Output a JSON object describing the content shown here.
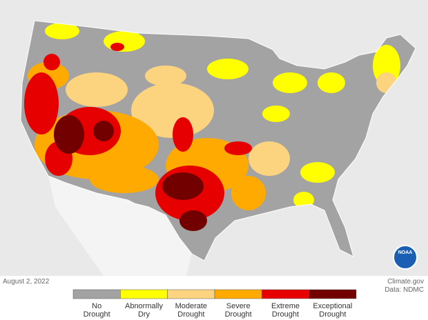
{
  "date": "August 2, 2022",
  "credit": [
    "Climate.gov",
    "Data: NDMC"
  ],
  "logo": "NOAA",
  "legend": [
    {
      "lines": [
        "No",
        "Drought"
      ],
      "color": "#a3a3a3"
    },
    {
      "lines": [
        "Abnormally",
        "Dry"
      ],
      "color": "#ffff00"
    },
    {
      "lines": [
        "Moderate",
        "Drought"
      ],
      "color": "#fcd37f"
    },
    {
      "lines": [
        "Severe",
        "Drought"
      ],
      "color": "#ffaa00"
    },
    {
      "lines": [
        "Extreme",
        "Drought"
      ],
      "color": "#e60000"
    },
    {
      "lines": [
        "Exceptional",
        "Drought"
      ],
      "color": "#730000"
    }
  ]
}
